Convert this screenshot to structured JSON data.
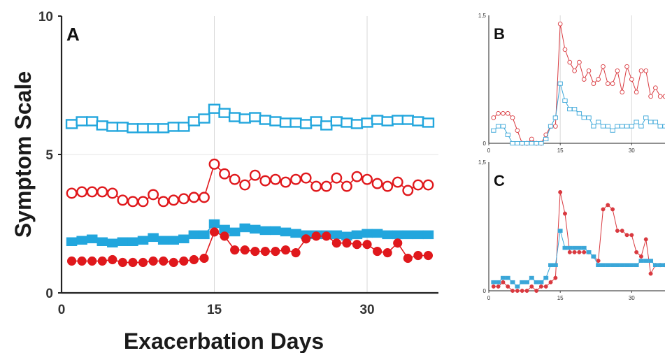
{
  "chart_data": [
    {
      "panel": "A",
      "type": "line",
      "ylabel": "Symptom Scale",
      "xlabel": "Exacerbation Days",
      "ylim": [
        0,
        10
      ],
      "xlim": [
        0,
        37
      ],
      "yticks": [
        "0",
        "5",
        "10"
      ],
      "xticks": [
        "0",
        "15",
        "30"
      ],
      "grid": "vertical at 15 and 30",
      "series": [
        {
          "marker": "open-square",
          "color": "#22a6dd",
          "x": [
            1,
            2,
            3,
            4,
            5,
            6,
            7,
            8,
            9,
            10,
            11,
            12,
            13,
            14,
            15,
            16,
            17,
            18,
            19,
            20,
            21,
            22,
            23,
            24,
            25,
            26,
            27,
            28,
            29,
            30,
            31,
            32,
            33,
            34,
            35,
            36
          ],
          "values": [
            6.1,
            6.2,
            6.2,
            6.05,
            6.0,
            6.0,
            5.95,
            5.95,
            5.95,
            5.95,
            6.0,
            6.0,
            6.2,
            6.3,
            6.65,
            6.5,
            6.35,
            6.3,
            6.35,
            6.25,
            6.2,
            6.15,
            6.15,
            6.1,
            6.2,
            6.05,
            6.2,
            6.15,
            6.1,
            6.15,
            6.25,
            6.2,
            6.25,
            6.25,
            6.2,
            6.15
          ]
        },
        {
          "marker": "open-circle",
          "color": "#e0181c",
          "x": [
            1,
            2,
            3,
            4,
            5,
            6,
            7,
            8,
            9,
            10,
            11,
            12,
            13,
            14,
            15,
            16,
            17,
            18,
            19,
            20,
            21,
            22,
            23,
            24,
            25,
            26,
            27,
            28,
            29,
            30,
            31,
            32,
            33,
            34,
            35,
            36
          ],
          "values": [
            3.6,
            3.65,
            3.65,
            3.65,
            3.6,
            3.35,
            3.3,
            3.3,
            3.55,
            3.3,
            3.35,
            3.4,
            3.45,
            3.45,
            4.65,
            4.3,
            4.1,
            3.9,
            4.25,
            4.05,
            4.1,
            4.0,
            4.1,
            4.15,
            3.85,
            3.85,
            4.15,
            3.85,
            4.2,
            4.1,
            3.95,
            3.85,
            4.0,
            3.7,
            3.9,
            3.9
          ]
        },
        {
          "marker": "filled-square",
          "color": "#22a6dd",
          "x": [
            1,
            2,
            3,
            4,
            5,
            6,
            7,
            8,
            9,
            10,
            11,
            12,
            13,
            14,
            15,
            16,
            17,
            18,
            19,
            20,
            21,
            22,
            23,
            24,
            25,
            26,
            27,
            28,
            29,
            30,
            31,
            32,
            33,
            34,
            35,
            36
          ],
          "values": [
            1.85,
            1.9,
            1.95,
            1.85,
            1.8,
            1.85,
            1.85,
            1.9,
            2.0,
            1.9,
            1.9,
            1.95,
            2.1,
            2.1,
            2.5,
            2.3,
            2.2,
            2.35,
            2.3,
            2.25,
            2.25,
            2.2,
            2.15,
            2.1,
            2.1,
            2.1,
            2.1,
            2.05,
            2.1,
            2.15,
            2.15,
            2.1,
            2.1,
            2.1,
            2.1,
            2.1
          ]
        },
        {
          "marker": "filled-circle",
          "color": "#e0181c",
          "x": [
            1,
            2,
            3,
            4,
            5,
            6,
            7,
            8,
            9,
            10,
            11,
            12,
            13,
            14,
            15,
            16,
            17,
            18,
            19,
            20,
            21,
            22,
            23,
            24,
            25,
            26,
            27,
            28,
            29,
            30,
            31,
            32,
            33,
            34,
            35,
            36
          ],
          "values": [
            1.15,
            1.15,
            1.15,
            1.15,
            1.2,
            1.1,
            1.1,
            1.1,
            1.15,
            1.15,
            1.1,
            1.15,
            1.2,
            1.25,
            2.2,
            2.05,
            1.55,
            1.55,
            1.5,
            1.5,
            1.5,
            1.55,
            1.45,
            1.95,
            2.05,
            2.05,
            1.8,
            1.8,
            1.75,
            1.75,
            1.5,
            1.45,
            1.8,
            1.25,
            1.35,
            1.35
          ]
        }
      ]
    },
    {
      "panel": "B",
      "type": "line",
      "ylim": [
        0,
        1.5
      ],
      "xlim": [
        0,
        37
      ],
      "yticks": [
        "0",
        "1,5"
      ],
      "xticks": [
        "0",
        "15",
        "30"
      ],
      "series": [
        {
          "marker": "open-circle",
          "color": "#d9393f",
          "x": [
            1,
            2,
            3,
            4,
            5,
            6,
            7,
            8,
            9,
            10,
            11,
            12,
            13,
            14,
            15,
            16,
            17,
            18,
            19,
            20,
            21,
            22,
            23,
            24,
            25,
            26,
            27,
            28,
            29,
            30,
            31,
            32,
            33,
            34,
            35,
            36,
            37
          ],
          "values": [
            0.3,
            0.35,
            0.35,
            0.35,
            0.3,
            0.15,
            0.0,
            0.0,
            0.05,
            0.0,
            0.0,
            0.1,
            0.2,
            0.2,
            1.4,
            1.1,
            0.95,
            0.85,
            0.95,
            0.75,
            0.85,
            0.7,
            0.75,
            0.9,
            0.7,
            0.7,
            0.85,
            0.6,
            0.9,
            0.75,
            0.6,
            0.85,
            0.85,
            0.55,
            0.65,
            0.55,
            0.55
          ]
        },
        {
          "marker": "open-square",
          "color": "#3aa6d8",
          "x": [
            1,
            2,
            3,
            4,
            5,
            6,
            7,
            8,
            9,
            10,
            11,
            12,
            13,
            14,
            15,
            16,
            17,
            18,
            19,
            20,
            21,
            22,
            23,
            24,
            25,
            26,
            27,
            28,
            29,
            30,
            31,
            32,
            33,
            34,
            35,
            36,
            37
          ],
          "values": [
            0.15,
            0.2,
            0.2,
            0.1,
            0.0,
            0.0,
            0.0,
            0.0,
            0.0,
            0.0,
            0.0,
            0.05,
            0.2,
            0.3,
            0.7,
            0.5,
            0.4,
            0.4,
            0.35,
            0.3,
            0.3,
            0.2,
            0.25,
            0.2,
            0.2,
            0.15,
            0.2,
            0.2,
            0.2,
            0.2,
            0.25,
            0.2,
            0.3,
            0.25,
            0.25,
            0.2,
            0.2
          ]
        }
      ]
    },
    {
      "panel": "C",
      "type": "line",
      "ylim": [
        0,
        1.5
      ],
      "xlim": [
        0,
        37
      ],
      "yticks": [
        "0",
        "1,5"
      ],
      "xticks": [
        "0",
        "15",
        "30"
      ],
      "series": [
        {
          "marker": "filled-circle",
          "color": "#d9393f",
          "x": [
            1,
            2,
            3,
            4,
            5,
            6,
            7,
            8,
            9,
            10,
            11,
            12,
            13,
            14,
            15,
            16,
            17,
            18,
            19,
            20,
            21,
            22,
            23,
            24,
            25,
            26,
            27,
            28,
            29,
            30,
            31,
            32,
            33,
            34,
            35,
            36,
            37
          ],
          "values": [
            0.05,
            0.05,
            0.1,
            0.05,
            0.0,
            0.0,
            0.0,
            0.0,
            0.05,
            0.0,
            0.05,
            0.05,
            0.1,
            0.15,
            1.15,
            0.9,
            0.45,
            0.45,
            0.45,
            0.45,
            0.45,
            0.4,
            0.35,
            0.95,
            1.0,
            0.95,
            0.7,
            0.7,
            0.65,
            0.65,
            0.45,
            0.4,
            0.6,
            0.2,
            0.3,
            0.3,
            0.3
          ]
        },
        {
          "marker": "filled-square",
          "color": "#3aa6d8",
          "x": [
            1,
            2,
            3,
            4,
            5,
            6,
            7,
            8,
            9,
            10,
            11,
            12,
            13,
            14,
            15,
            16,
            17,
            18,
            19,
            20,
            21,
            22,
            23,
            24,
            25,
            26,
            27,
            28,
            29,
            30,
            31,
            32,
            33,
            34,
            35,
            36,
            37
          ],
          "values": [
            0.1,
            0.1,
            0.15,
            0.15,
            0.1,
            0.05,
            0.1,
            0.1,
            0.15,
            0.1,
            0.1,
            0.15,
            0.3,
            0.3,
            0.7,
            0.5,
            0.5,
            0.5,
            0.5,
            0.5,
            0.45,
            0.4,
            0.3,
            0.3,
            0.3,
            0.3,
            0.3,
            0.3,
            0.3,
            0.3,
            0.3,
            0.35,
            0.35,
            0.35,
            0.3,
            0.3,
            0.3
          ]
        }
      ]
    }
  ]
}
